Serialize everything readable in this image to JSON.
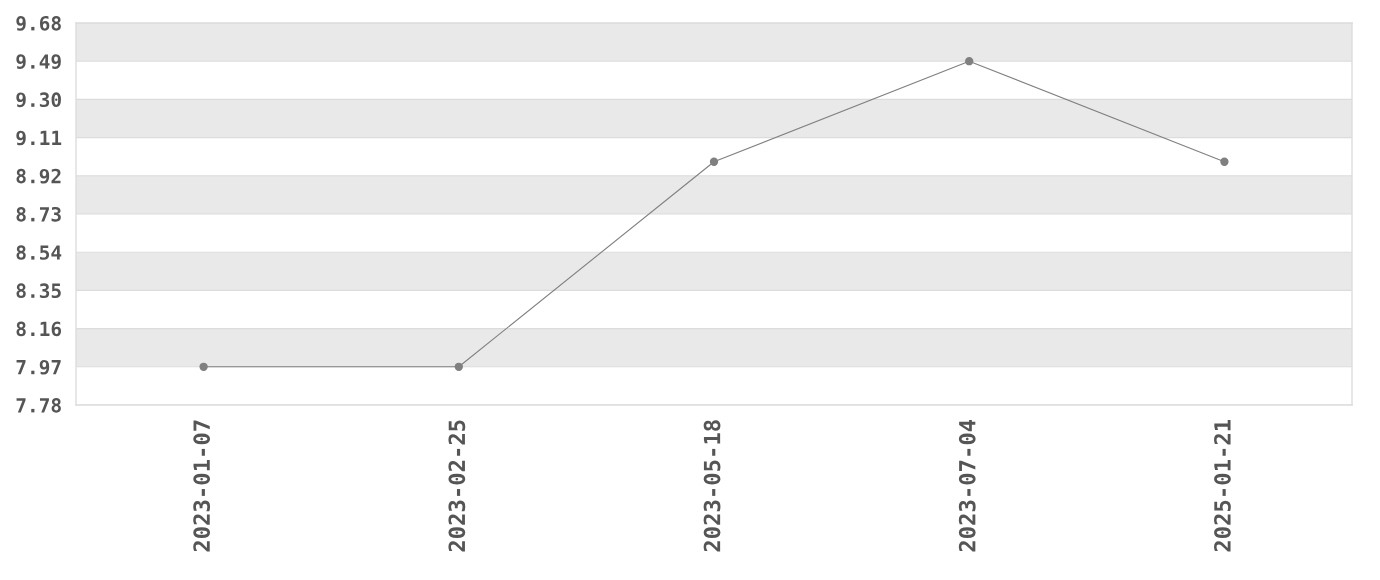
{
  "chart_data": {
    "type": "line",
    "categories": [
      "2023-01-07",
      "2023-02-25",
      "2023-05-18",
      "2023-07-04",
      "2025-01-21"
    ],
    "series": [
      {
        "color": "#808080",
        "values": [
          7.97,
          7.97,
          8.99,
          9.49,
          8.99
        ]
      }
    ],
    "ylim": [
      7.78,
      9.68
    ],
    "yticks": [
      {
        "value": 7.78,
        "label": "7.78"
      },
      {
        "value": 7.97,
        "label": "7.97"
      },
      {
        "value": 8.16,
        "label": "8.16"
      },
      {
        "value": 8.35,
        "label": "8.35"
      },
      {
        "value": 8.54,
        "label": "8.54"
      },
      {
        "value": 8.73,
        "label": "8.73"
      },
      {
        "value": 8.92,
        "label": "8.92"
      },
      {
        "value": 9.11,
        "label": "9.11"
      },
      {
        "value": 9.3,
        "label": "9.30"
      },
      {
        "value": 9.49,
        "label": "9.49"
      },
      {
        "value": 9.68,
        "label": "9.68"
      }
    ],
    "grid": "y",
    "marker": "circle",
    "line_style": "solid"
  }
}
